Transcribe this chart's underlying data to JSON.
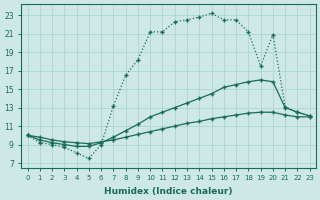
{
  "xlabel": "Humidex (Indice chaleur)",
  "bg_color": "#cde8e5",
  "grid_color": "#b0d8d4",
  "line_color": "#1a6b5a",
  "xlim": [
    -0.5,
    23.5
  ],
  "ylim": [
    6.5,
    24.2
  ],
  "xticks": [
    0,
    1,
    2,
    3,
    4,
    5,
    6,
    7,
    8,
    9,
    10,
    11,
    12,
    13,
    14,
    15,
    16,
    17,
    18,
    19,
    20,
    21,
    22,
    23
  ],
  "yticks": [
    7,
    9,
    11,
    13,
    15,
    17,
    19,
    21,
    23
  ],
  "line_main_x": [
    0,
    1,
    2,
    3,
    4,
    5,
    6,
    7,
    8,
    9,
    10,
    11,
    12,
    13,
    14,
    15,
    16,
    17,
    18,
    19,
    20,
    21,
    22,
    23
  ],
  "line_main_y": [
    10,
    9.2,
    9,
    8.7,
    8.1,
    7.5,
    9,
    13.2,
    16.5,
    18.2,
    21.2,
    21.2,
    22.3,
    22.5,
    22.8,
    23.2,
    22.5,
    22.5,
    21.2,
    17.5,
    20.9,
    13.1,
    12.5,
    12.1
  ],
  "line_mid_x": [
    0,
    1,
    2,
    3,
    4,
    5,
    6,
    7,
    8,
    9,
    10,
    11,
    12,
    13,
    14,
    15,
    16,
    17,
    18,
    19,
    20,
    21,
    22,
    23
  ],
  "line_mid_y": [
    10,
    9.5,
    9.2,
    9,
    8.8,
    8.8,
    9.2,
    9.8,
    10.5,
    11.2,
    12,
    12.5,
    13,
    13.5,
    14,
    14.5,
    15.2,
    15.5,
    15.8,
    16,
    15.8,
    13.0,
    12.5,
    12.1
  ],
  "line_low_x": [
    0,
    1,
    2,
    3,
    4,
    5,
    6,
    7,
    8,
    9,
    10,
    11,
    12,
    13,
    14,
    15,
    16,
    17,
    18,
    19,
    20,
    21,
    22,
    23
  ],
  "line_low_y": [
    10,
    9.8,
    9.5,
    9.3,
    9.2,
    9.1,
    9.3,
    9.5,
    9.8,
    10.1,
    10.4,
    10.7,
    11.0,
    11.3,
    11.5,
    11.8,
    12.0,
    12.2,
    12.4,
    12.5,
    12.5,
    12.2,
    12.0,
    12.0
  ],
  "line_main_style": "dotted",
  "line_mid_style": "solid",
  "line_low_style": "solid"
}
